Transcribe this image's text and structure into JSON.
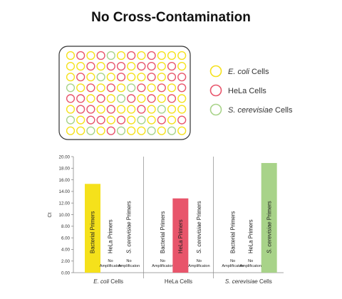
{
  "title": "No Cross-Contamination",
  "colors": {
    "ecoli": "#f5e11b",
    "hela": "#e8556b",
    "scerevisiae": "#a8d389",
    "plate_border": "#333333",
    "axis": "#888888"
  },
  "plate": {
    "rows": [
      [
        "ecoli",
        "hela",
        "ecoli",
        "hela",
        "scerevisiae",
        "ecoli",
        "hela",
        "ecoli",
        "hela",
        "ecoli",
        "ecoli",
        "ecoli"
      ],
      [
        "ecoli",
        "ecoli",
        "hela",
        "ecoli",
        "hela",
        "hela",
        "ecoli",
        "hela",
        "hela",
        "ecoli",
        "hela",
        "ecoli"
      ],
      [
        "ecoli",
        "hela",
        "ecoli",
        "scerevisiae",
        "ecoli",
        "hela",
        "ecoli",
        "ecoli",
        "hela",
        "ecoli",
        "hela",
        "hela"
      ],
      [
        "scerevisiae",
        "ecoli",
        "hela",
        "ecoli",
        "hela",
        "ecoli",
        "scerevisiae",
        "hela",
        "ecoli",
        "hela",
        "ecoli",
        "hela"
      ],
      [
        "hela",
        "hela",
        "ecoli",
        "hela",
        "ecoli",
        "scerevisiae",
        "hela",
        "ecoli",
        "hela",
        "ecoli",
        "hela",
        "ecoli"
      ],
      [
        "ecoli",
        "hela",
        "hela",
        "ecoli",
        "hela",
        "ecoli",
        "ecoli",
        "hela",
        "ecoli",
        "scerevisiae",
        "ecoli",
        "ecoli"
      ],
      [
        "scerevisiae",
        "ecoli",
        "hela",
        "hela",
        "ecoli",
        "hela",
        "ecoli",
        "scerevisiae",
        "ecoli",
        "hela",
        "ecoli",
        "hela"
      ],
      [
        "ecoli",
        "ecoli",
        "scerevisiae",
        "ecoli",
        "hela",
        "scerevisiae",
        "ecoli",
        "ecoli",
        "scerevisiae",
        "ecoli",
        "scerevisiae",
        "ecoli"
      ]
    ]
  },
  "legend": [
    {
      "key": "ecoli",
      "italic": "E. coli",
      "rest": " Cells"
    },
    {
      "key": "hela",
      "italic": "",
      "rest": "HeLa Cells"
    },
    {
      "key": "scerevisiae",
      "italic": "S. cerevisiae",
      "rest": " Cells"
    }
  ],
  "chart_data": {
    "type": "bar",
    "ylabel": "Ct",
    "ylim": [
      0,
      20
    ],
    "yticks": [
      "0.00",
      "2.00",
      "4.00",
      "6.00",
      "8.00",
      "10.00",
      "12.00",
      "14.00",
      "16.00",
      "18.00",
      "20.00"
    ],
    "groups": [
      {
        "label_italic": "E. coli",
        "label_rest": " Cells"
      },
      {
        "label_italic": "",
        "label_rest": "HeLa Cells"
      },
      {
        "label_italic": "S. cerevisiae",
        "label_rest": " Cells"
      }
    ],
    "primers": [
      {
        "plain": "Bacterial Primers",
        "italic": "",
        "tail": ""
      },
      {
        "plain": "HeLa Primers",
        "italic": "",
        "tail": ""
      },
      {
        "plain": "",
        "italic": "S. cerevisiae",
        "tail": " Primers"
      }
    ],
    "no_amp_label": [
      "No",
      "Amplificaton"
    ],
    "values": [
      [
        15.3,
        null,
        null
      ],
      [
        null,
        12.8,
        null
      ],
      [
        null,
        null,
        18.9
      ]
    ],
    "bar_colors": [
      "ecoli",
      "hela",
      "scerevisiae"
    ]
  }
}
